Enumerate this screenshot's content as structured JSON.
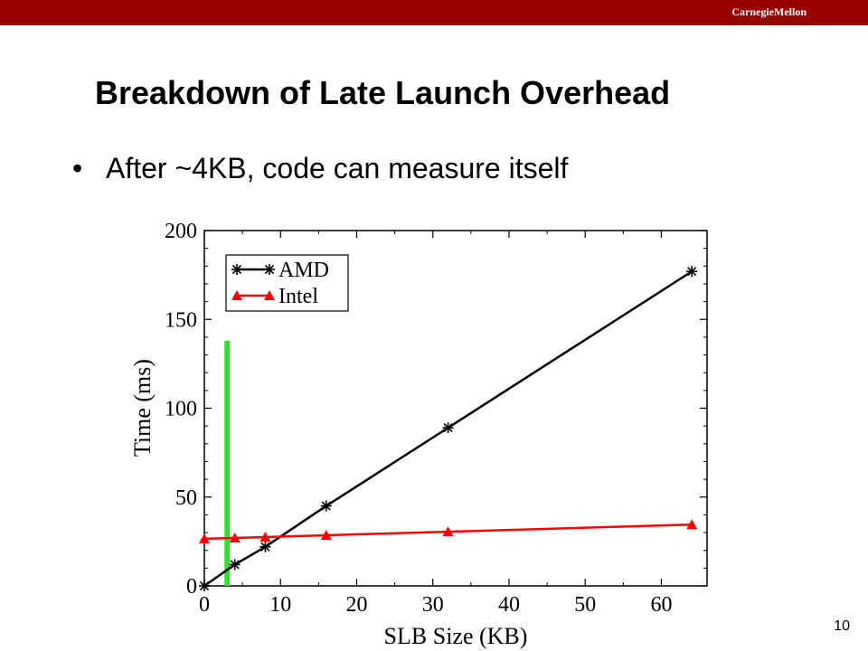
{
  "header": {
    "brand": "CarnegieMellon",
    "bar_color": "#990000"
  },
  "slide": {
    "title": "Breakdown of Late Launch Overhead",
    "bullet_symbol": "•",
    "bullet": "After ~4KB, code can measure itself",
    "page_number": "10"
  },
  "chart_data": {
    "type": "line",
    "xlabel": "SLB Size (KB)",
    "ylabel": "Time (ms)",
    "xlim": [
      0,
      66
    ],
    "ylim": [
      0,
      200
    ],
    "xticks": [
      0,
      10,
      20,
      30,
      40,
      50,
      60
    ],
    "yticks": [
      0,
      50,
      100,
      150,
      200
    ],
    "grid": false,
    "legend_position": "top-left",
    "series": [
      {
        "name": "AMD",
        "color": "#000000",
        "marker": "asterisk",
        "x": [
          0,
          4,
          8,
          16,
          32,
          64
        ],
        "y": [
          0,
          12,
          22,
          45,
          89,
          177
        ]
      },
      {
        "name": "Intel",
        "color": "#ff0000",
        "marker": "triangle",
        "x": [
          0,
          4,
          8,
          16,
          32,
          64
        ],
        "y": [
          26.5,
          27,
          27.5,
          28.5,
          30.5,
          34.5
        ]
      }
    ],
    "annotations": [
      {
        "type": "vertical-line",
        "x": 3,
        "y_range": [
          0,
          138
        ],
        "color": "#33dd33"
      }
    ]
  }
}
